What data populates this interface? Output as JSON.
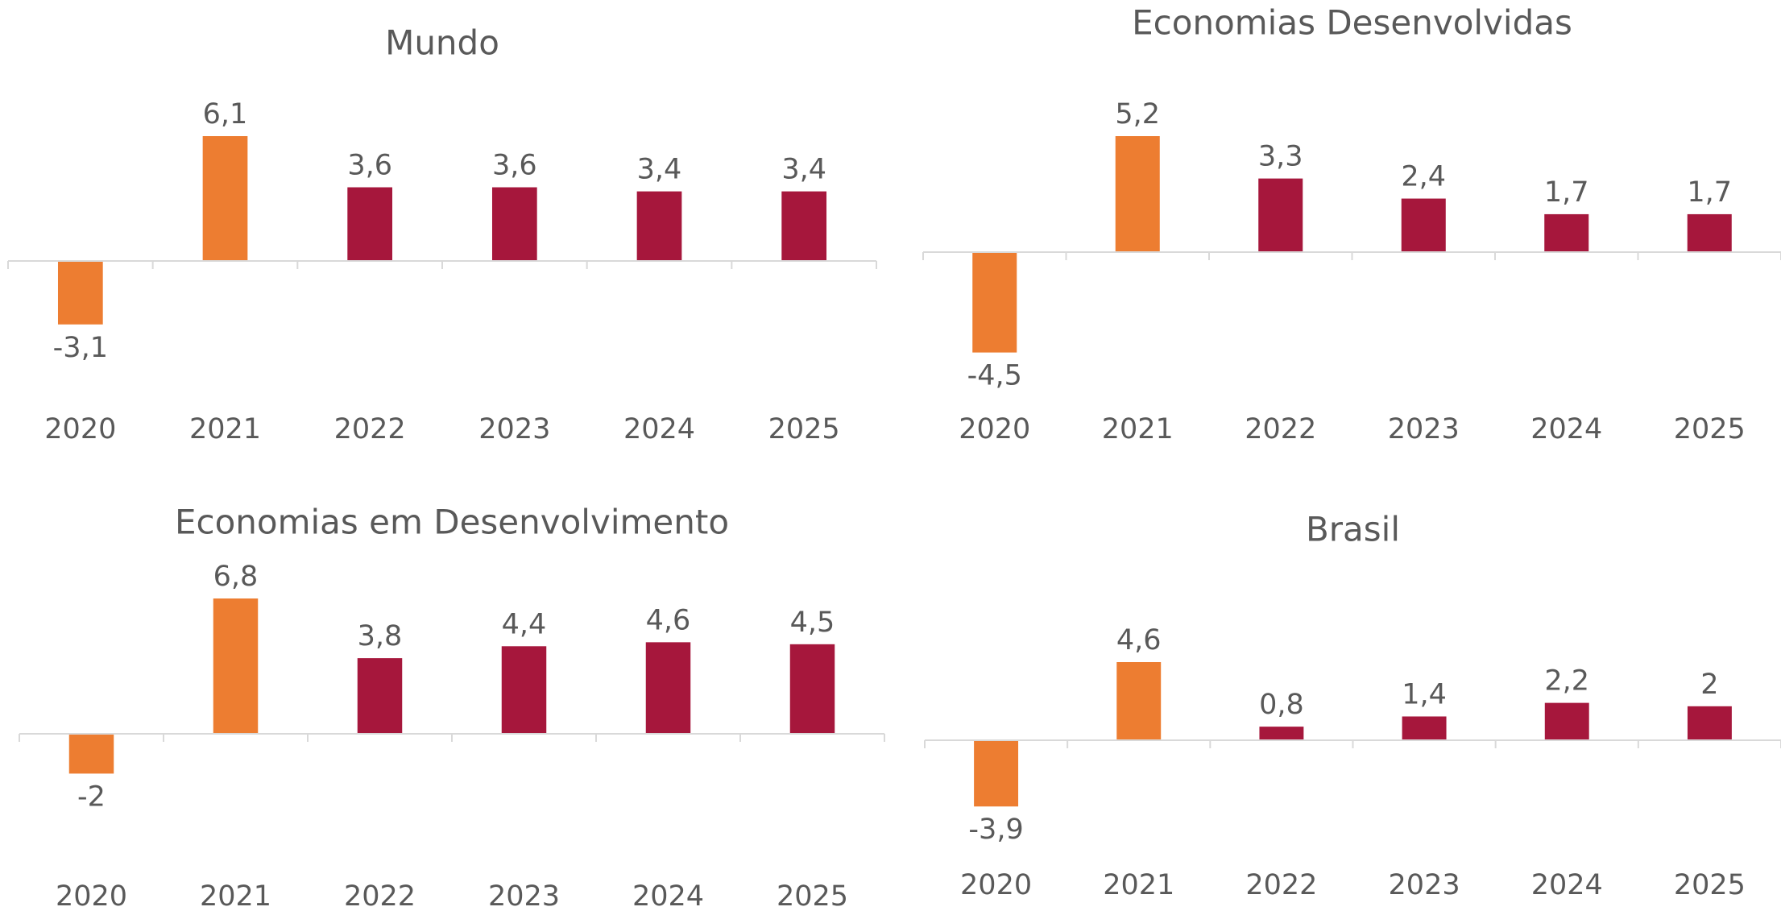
{
  "chart_data": [
    {
      "type": "bar",
      "title": "Mundo",
      "categories": [
        "2020",
        "2021",
        "2022",
        "2023",
        "2024",
        "2025"
      ],
      "values": [
        -3.1,
        6.1,
        3.6,
        3.6,
        3.4,
        3.4
      ],
      "value_labels": [
        "-3,1",
        "6,1",
        "3,6",
        "3,6",
        "3,4",
        "3,4"
      ],
      "colors": [
        "#ED7D31",
        "#ED7D31",
        "#A6173C",
        "#A6173C",
        "#A6173C",
        "#A6173C"
      ]
    },
    {
      "type": "bar",
      "title": "Economias Desenvolvidas",
      "categories": [
        "2020",
        "2021",
        "2022",
        "2023",
        "2024",
        "2025"
      ],
      "values": [
        -4.5,
        5.2,
        3.3,
        2.4,
        1.7,
        1.7
      ],
      "value_labels": [
        "-4,5",
        "5,2",
        "3,3",
        "2,4",
        "1,7",
        "1,7"
      ],
      "colors": [
        "#ED7D31",
        "#ED7D31",
        "#A6173C",
        "#A6173C",
        "#A6173C",
        "#A6173C"
      ]
    },
    {
      "type": "bar",
      "title": "Economias em Desenvolvimento",
      "categories": [
        "2020",
        "2021",
        "2022",
        "2023",
        "2024",
        "2025"
      ],
      "values": [
        -2,
        6.8,
        3.8,
        4.4,
        4.6,
        4.5
      ],
      "value_labels": [
        "-2",
        "6,8",
        "3,8",
        "4,4",
        "4,6",
        "4,5"
      ],
      "colors": [
        "#ED7D31",
        "#ED7D31",
        "#A6173C",
        "#A6173C",
        "#A6173C",
        "#A6173C"
      ]
    },
    {
      "type": "bar",
      "title": "Brasil",
      "categories": [
        "2020",
        "2021",
        "2022",
        "2023",
        "2024",
        "2025"
      ],
      "values": [
        -3.9,
        4.6,
        0.8,
        1.4,
        2.2,
        2
      ],
      "value_labels": [
        "-3,9",
        "4,6",
        "0,8",
        "1,4",
        "2,2",
        "2"
      ],
      "colors": [
        "#ED7D31",
        "#ED7D31",
        "#A6173C",
        "#A6173C",
        "#A6173C",
        "#A6173C"
      ]
    }
  ]
}
